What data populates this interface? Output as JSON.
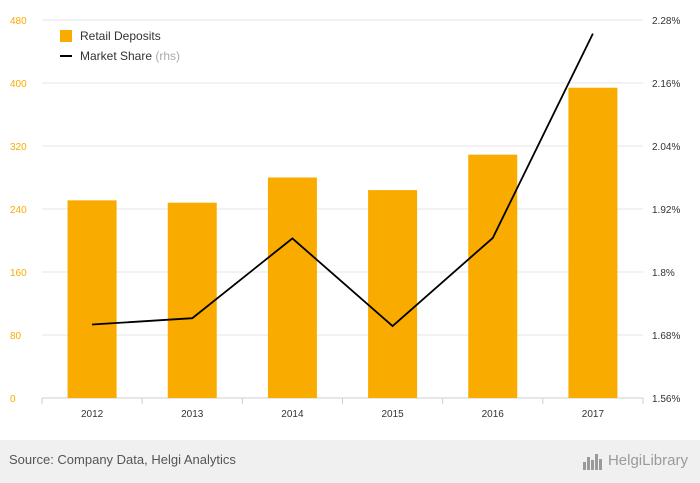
{
  "chart_data": {
    "type": "bar",
    "categories": [
      "2012",
      "2013",
      "2014",
      "2015",
      "2016",
      "2017"
    ],
    "series": [
      {
        "name": "Retail Deposits",
        "kind": "bar",
        "axis": "left",
        "color": "#f9ab00",
        "values": [
          251,
          248,
          280,
          264,
          309,
          394
        ]
      },
      {
        "name": "Market Share",
        "legend_suffix": "(rhs)",
        "kind": "line",
        "axis": "right",
        "color": "#000000",
        "values": [
          1.7,
          1.712,
          1.864,
          1.697,
          1.865,
          2.254
        ]
      }
    ],
    "left_axis": {
      "ylim": [
        0,
        480
      ],
      "ticks": [
        0,
        80,
        160,
        240,
        320,
        400,
        480
      ],
      "tick_labels": [
        "0",
        "80",
        "160",
        "240",
        "320",
        "400",
        "480"
      ],
      "tick_color": "#f9ab00"
    },
    "right_axis": {
      "ylim": [
        1.56,
        2.28
      ],
      "ticks": [
        1.56,
        1.68,
        1.8,
        1.92,
        2.04,
        2.16,
        2.28
      ],
      "tick_labels": [
        "1.56%",
        "1.68%",
        "1.8%",
        "1.92%",
        "2.04%",
        "2.16%",
        "2.28%"
      ]
    },
    "grid": true,
    "legend": "top-left"
  },
  "footer": {
    "source": "Source: Company Data, Helgi Analytics",
    "brand": "HelgiLibrary",
    "brand_icon": "helgi-logo-icon"
  }
}
